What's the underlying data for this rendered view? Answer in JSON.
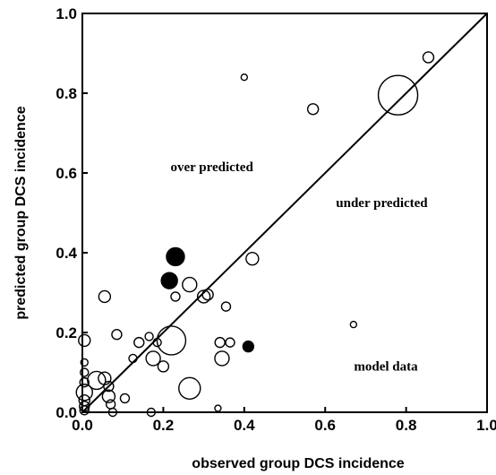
{
  "chart_data": {
    "type": "scatter",
    "xlabel": "observed group DCS incidence",
    "ylabel": "predicted group DCS incidence",
    "xlim": [
      0.0,
      1.0
    ],
    "ylim": [
      0.0,
      1.0
    ],
    "xticks": [
      "0.0",
      "0.2",
      "0.4",
      "0.6",
      "0.8",
      "1.0"
    ],
    "yticks": [
      "0.0",
      "0.2",
      "0.4",
      "0.6",
      "0.8",
      "1.0"
    ],
    "grid": false,
    "legend": "none",
    "marker_style": "open circles sized by group size; three filled circles",
    "reference_line": {
      "from": [
        0.0,
        0.0
      ],
      "to": [
        1.0,
        1.0
      ]
    },
    "annotations": [
      {
        "text": "over predicted",
        "x": 0.32,
        "y": 0.605
      },
      {
        "text": "under predicted",
        "x": 0.74,
        "y": 0.515
      },
      {
        "text": "model data",
        "x": 0.75,
        "y": 0.105
      }
    ],
    "points": [
      {
        "x": 0.78,
        "y": 0.795,
        "size": 22,
        "filled": false
      },
      {
        "x": 0.855,
        "y": 0.89,
        "size": 6,
        "filled": false
      },
      {
        "x": 0.57,
        "y": 0.76,
        "size": 6,
        "filled": false
      },
      {
        "x": 0.4,
        "y": 0.84,
        "size": 3.5,
        "filled": false
      },
      {
        "x": 0.67,
        "y": 0.22,
        "size": 3.5,
        "filled": false
      },
      {
        "x": 0.42,
        "y": 0.385,
        "size": 7,
        "filled": false
      },
      {
        "x": 0.23,
        "y": 0.39,
        "size": 10,
        "filled": true
      },
      {
        "x": 0.215,
        "y": 0.33,
        "size": 9,
        "filled": true
      },
      {
        "x": 0.41,
        "y": 0.165,
        "size": 6,
        "filled": true
      },
      {
        "x": 0.265,
        "y": 0.32,
        "size": 8,
        "filled": false
      },
      {
        "x": 0.23,
        "y": 0.29,
        "size": 5,
        "filled": false
      },
      {
        "x": 0.3,
        "y": 0.29,
        "size": 7,
        "filled": false
      },
      {
        "x": 0.31,
        "y": 0.295,
        "size": 6,
        "filled": false
      },
      {
        "x": 0.055,
        "y": 0.29,
        "size": 6.5,
        "filled": false
      },
      {
        "x": 0.355,
        "y": 0.265,
        "size": 5,
        "filled": false
      },
      {
        "x": 0.22,
        "y": 0.18,
        "size": 16,
        "filled": false
      },
      {
        "x": 0.175,
        "y": 0.135,
        "size": 8,
        "filled": false
      },
      {
        "x": 0.365,
        "y": 0.175,
        "size": 5,
        "filled": false
      },
      {
        "x": 0.34,
        "y": 0.175,
        "size": 5.5,
        "filled": false
      },
      {
        "x": 0.345,
        "y": 0.135,
        "size": 8,
        "filled": false
      },
      {
        "x": 0.085,
        "y": 0.195,
        "size": 5.5,
        "filled": false
      },
      {
        "x": 0.14,
        "y": 0.175,
        "size": 5.5,
        "filled": false
      },
      {
        "x": 0.165,
        "y": 0.19,
        "size": 4.5,
        "filled": false
      },
      {
        "x": 0.185,
        "y": 0.175,
        "size": 4.5,
        "filled": false
      },
      {
        "x": 0.2,
        "y": 0.115,
        "size": 6,
        "filled": false
      },
      {
        "x": 0.125,
        "y": 0.135,
        "size": 4.5,
        "filled": false
      },
      {
        "x": 0.005,
        "y": 0.18,
        "size": 6.5,
        "filled": false
      },
      {
        "x": 0.005,
        "y": 0.125,
        "size": 4,
        "filled": false
      },
      {
        "x": 0.005,
        "y": 0.1,
        "size": 4.5,
        "filled": false
      },
      {
        "x": 0.005,
        "y": 0.075,
        "size": 5,
        "filled": false
      },
      {
        "x": 0.005,
        "y": 0.05,
        "size": 9,
        "filled": false
      },
      {
        "x": 0.005,
        "y": 0.03,
        "size": 6,
        "filled": false
      },
      {
        "x": 0.005,
        "y": 0.015,
        "size": 5.5,
        "filled": false
      },
      {
        "x": 0.005,
        "y": 0.005,
        "size": 5,
        "filled": false
      },
      {
        "x": 0.035,
        "y": 0.08,
        "size": 10,
        "filled": false
      },
      {
        "x": 0.055,
        "y": 0.085,
        "size": 7,
        "filled": false
      },
      {
        "x": 0.065,
        "y": 0.04,
        "size": 7,
        "filled": false
      },
      {
        "x": 0.065,
        "y": 0.065,
        "size": 5.5,
        "filled": false
      },
      {
        "x": 0.07,
        "y": 0.02,
        "size": 5,
        "filled": false
      },
      {
        "x": 0.075,
        "y": 0.0,
        "size": 4.5,
        "filled": false
      },
      {
        "x": 0.105,
        "y": 0.035,
        "size": 5,
        "filled": false
      },
      {
        "x": 0.17,
        "y": 0.0,
        "size": 4.5,
        "filled": false
      },
      {
        "x": 0.265,
        "y": 0.06,
        "size": 12,
        "filled": false
      },
      {
        "x": 0.335,
        "y": 0.01,
        "size": 3.5,
        "filled": false
      }
    ]
  }
}
